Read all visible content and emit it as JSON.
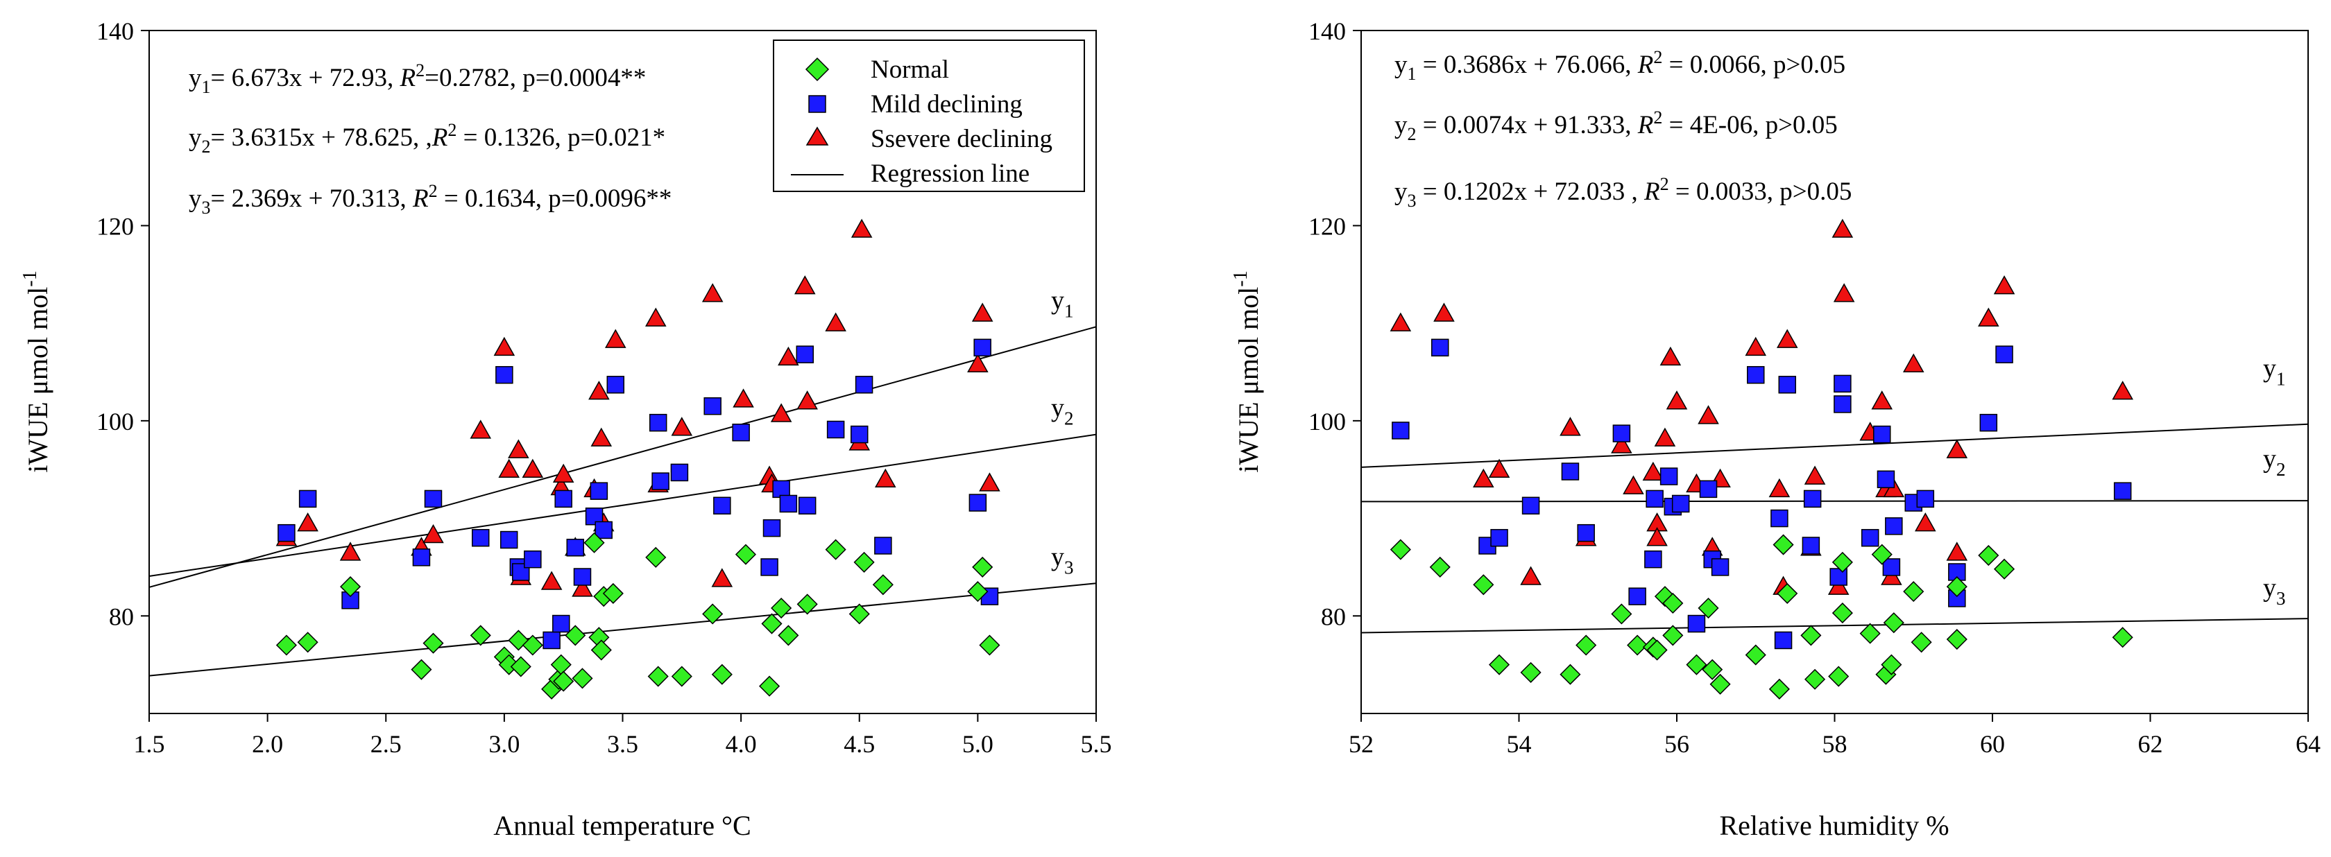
{
  "chart_data": [
    {
      "type": "scatter",
      "xlabel": "Annual temperature °C",
      "ylabel": "iWUE μmol mol",
      "ylabel_sup": "-1",
      "xlim": [
        1.5,
        5.5
      ],
      "ylim": [
        70,
        140
      ],
      "xticks": [
        "1.5",
        "2.0",
        "2.5",
        "3.0",
        "3.5",
        "4.0",
        "4.5",
        "5.0",
        "5.5"
      ],
      "yticks": [
        "80",
        "100",
        "120",
        "140"
      ],
      "legend": {
        "position": "top-right",
        "entries": [
          "Normal",
          "Mild declining",
          "Ssevere declining",
          "Regression line"
        ]
      },
      "equations": [
        "y1= 6.673x + 72.93, R2=0.2782, p=0.0004**",
        "y2= 3.6315x + 78.625, ,R2 = 0.1326, p=0.021*",
        "y3= 2.369x + 70.313, R2 = 0.1634, p=0.0096**"
      ],
      "regression": [
        {
          "name": "y",
          "sub": "1",
          "slope": 6.673,
          "intercept": 72.93
        },
        {
          "name": "y",
          "sub": "2",
          "slope": 3.6315,
          "intercept": 78.625
        },
        {
          "name": "y",
          "sub": "3",
          "slope": 2.369,
          "intercept": 70.313
        }
      ],
      "series": [
        {
          "name": "Normal",
          "marker": "diamond",
          "color": "#33ee22",
          "points": [
            [
              2.08,
              77
            ],
            [
              2.17,
              77.3
            ],
            [
              2.35,
              83
            ],
            [
              2.65,
              74.5
            ],
            [
              2.7,
              77.2
            ],
            [
              2.9,
              78
            ],
            [
              3.0,
              75.8
            ],
            [
              3.02,
              75
            ],
            [
              3.06,
              77.5
            ],
            [
              3.07,
              74.8
            ],
            [
              3.12,
              77
            ],
            [
              3.2,
              72.5
            ],
            [
              3.23,
              73.5
            ],
            [
              3.24,
              75
            ],
            [
              3.25,
              73.3
            ],
            [
              3.3,
              78
            ],
            [
              3.33,
              73.6
            ],
            [
              3.38,
              87.5
            ],
            [
              3.4,
              77.8
            ],
            [
              3.41,
              76.5
            ],
            [
              3.42,
              82
            ],
            [
              3.46,
              82.3
            ],
            [
              3.64,
              86
            ],
            [
              3.65,
              73.8
            ],
            [
              3.75,
              73.8
            ],
            [
              3.88,
              80.2
            ],
            [
              3.92,
              74
            ],
            [
              4.02,
              86.3
            ],
            [
              4.12,
              72.8
            ],
            [
              4.13,
              79.2
            ],
            [
              4.17,
              80.8
            ],
            [
              4.2,
              78
            ],
            [
              4.28,
              81.2
            ],
            [
              4.4,
              86.8
            ],
            [
              4.5,
              80.2
            ],
            [
              4.52,
              85.5
            ],
            [
              4.6,
              83.2
            ],
            [
              5.0,
              82.5
            ],
            [
              5.02,
              85
            ],
            [
              5.05,
              77
            ]
          ]
        },
        {
          "name": "Mild declining",
          "marker": "square",
          "color": "#1a1aff",
          "points": [
            [
              2.08,
              88.5
            ],
            [
              2.17,
              92
            ],
            [
              2.35,
              81.6
            ],
            [
              2.65,
              86
            ],
            [
              2.7,
              92
            ],
            [
              2.9,
              88
            ],
            [
              3.0,
              104.7
            ],
            [
              3.02,
              87.8
            ],
            [
              3.06,
              85
            ],
            [
              3.07,
              84.5
            ],
            [
              3.12,
              85.8
            ],
            [
              3.2,
              77.5
            ],
            [
              3.24,
              79.2
            ],
            [
              3.25,
              92
            ],
            [
              3.3,
              87
            ],
            [
              3.33,
              84
            ],
            [
              3.38,
              90.2
            ],
            [
              3.4,
              92.8
            ],
            [
              3.42,
              88.8
            ],
            [
              3.47,
              103.7
            ],
            [
              3.65,
              99.8
            ],
            [
              3.66,
              93.8
            ],
            [
              3.74,
              94.7
            ],
            [
              3.88,
              101.5
            ],
            [
              3.92,
              91.3
            ],
            [
              4.0,
              98.8
            ],
            [
              4.12,
              85
            ],
            [
              4.13,
              89
            ],
            [
              4.17,
              93
            ],
            [
              4.2,
              91.5
            ],
            [
              4.27,
              106.8
            ],
            [
              4.28,
              91.3
            ],
            [
              4.4,
              99.1
            ],
            [
              4.5,
              98.6
            ],
            [
              4.52,
              103.7
            ],
            [
              4.6,
              87.2
            ],
            [
              5.0,
              91.6
            ],
            [
              5.02,
              107.5
            ],
            [
              5.05,
              82
            ]
          ]
        },
        {
          "name": "Ssevere declining",
          "marker": "triangle",
          "color": "#ee1111",
          "points": [
            [
              2.08,
              88
            ],
            [
              2.17,
              89.5
            ],
            [
              2.35,
              86.5
            ],
            [
              2.65,
              87
            ],
            [
              2.7,
              88.3
            ],
            [
              2.9,
              99
            ],
            [
              3.0,
              107.5
            ],
            [
              3.02,
              95
            ],
            [
              3.06,
              97
            ],
            [
              3.07,
              84
            ],
            [
              3.12,
              95
            ],
            [
              3.2,
              83.5
            ],
            [
              3.24,
              93.2
            ],
            [
              3.25,
              94.5
            ],
            [
              3.3,
              87
            ],
            [
              3.33,
              82.8
            ],
            [
              3.38,
              93
            ],
            [
              3.4,
              103
            ],
            [
              3.41,
              98.2
            ],
            [
              3.42,
              89.5
            ],
            [
              3.47,
              108.3
            ],
            [
              3.64,
              110.5
            ],
            [
              3.65,
              93.5
            ],
            [
              3.75,
              99.3
            ],
            [
              3.88,
              113
            ],
            [
              3.92,
              83.8
            ],
            [
              4.01,
              102.2
            ],
            [
              4.12,
              94.3
            ],
            [
              4.13,
              93.5
            ],
            [
              4.17,
              100.7
            ],
            [
              4.2,
              106.5
            ],
            [
              4.27,
              113.8
            ],
            [
              4.28,
              102
            ],
            [
              4.4,
              110
            ],
            [
              4.5,
              97.8
            ],
            [
              4.51,
              119.6
            ],
            [
              4.61,
              94
            ],
            [
              5.0,
              105.8
            ],
            [
              5.02,
              111
            ],
            [
              5.05,
              93.6
            ]
          ]
        }
      ]
    },
    {
      "type": "scatter",
      "xlabel": "Relative humidity %",
      "ylabel": "iWUE μmol mol",
      "ylabel_sup": "-1",
      "xlim": [
        52,
        64
      ],
      "ylim": [
        70,
        140
      ],
      "xticks": [
        "52",
        "54",
        "56",
        "58",
        "60",
        "62",
        "64"
      ],
      "yticks": [
        "80",
        "100",
        "120",
        "140"
      ],
      "equations": [
        "y1 = 0.3686x + 76.066, R2 = 0.0066, p>0.05",
        "y2 = 0.0074x + 91.333, R2 = 4E-06, p>0.05",
        "y3 = 0.1202x + 72.033 , R2 = 0.0033, p>0.05"
      ],
      "regression": [
        {
          "name": "y",
          "sub": "1",
          "slope": 0.3686,
          "intercept": 76.066
        },
        {
          "name": "y",
          "sub": "2",
          "slope": 0.0074,
          "intercept": 91.333
        },
        {
          "name": "y",
          "sub": "3",
          "slope": 0.1202,
          "intercept": 72.033
        }
      ],
      "series": [
        {
          "name": "Normal",
          "marker": "diamond",
          "color": "#33ee22",
          "points": [
            [
              52.5,
              86.8
            ],
            [
              53.0,
              85
            ],
            [
              53.55,
              83.2
            ],
            [
              53.75,
              75
            ],
            [
              54.15,
              74.2
            ],
            [
              54.65,
              74
            ],
            [
              54.85,
              77
            ],
            [
              55.3,
              80.2
            ],
            [
              55.5,
              77
            ],
            [
              55.7,
              76.8
            ],
            [
              55.75,
              76.5
            ],
            [
              55.85,
              82
            ],
            [
              55.95,
              81.3
            ],
            [
              55.95,
              78
            ],
            [
              56.25,
              75
            ],
            [
              56.4,
              80.8
            ],
            [
              56.45,
              74.5
            ],
            [
              56.55,
              73
            ],
            [
              57.0,
              76
            ],
            [
              57.3,
              72.5
            ],
            [
              57.35,
              87.3
            ],
            [
              57.4,
              82.3
            ],
            [
              57.7,
              78
            ],
            [
              57.75,
              73.5
            ],
            [
              58.05,
              73.8
            ],
            [
              58.1,
              85.5
            ],
            [
              58.1,
              80.3
            ],
            [
              58.45,
              78.2
            ],
            [
              58.6,
              86.3
            ],
            [
              58.65,
              74
            ],
            [
              58.72,
              75
            ],
            [
              58.75,
              79.3
            ],
            [
              59.0,
              82.5
            ],
            [
              59.1,
              77.3
            ],
            [
              59.55,
              77.6
            ],
            [
              59.55,
              83
            ],
            [
              59.95,
              86.2
            ],
            [
              60.15,
              84.8
            ],
            [
              61.65,
              77.8
            ]
          ]
        },
        {
          "name": "Mild declining",
          "marker": "square",
          "color": "#1a1aff",
          "points": [
            [
              52.5,
              99
            ],
            [
              53.0,
              107.5
            ],
            [
              53.6,
              87.2
            ],
            [
              53.75,
              88
            ],
            [
              54.15,
              91.3
            ],
            [
              54.65,
              94.8
            ],
            [
              54.85,
              88.5
            ],
            [
              55.3,
              98.7
            ],
            [
              55.5,
              82
            ],
            [
              55.7,
              85.8
            ],
            [
              55.72,
              92
            ],
            [
              55.9,
              94.3
            ],
            [
              55.95,
              91.2
            ],
            [
              56.05,
              91.5
            ],
            [
              56.25,
              79.2
            ],
            [
              56.4,
              93
            ],
            [
              56.45,
              85.8
            ],
            [
              56.55,
              85
            ],
            [
              57.0,
              104.7
            ],
            [
              57.3,
              90
            ],
            [
              57.35,
              77.5
            ],
            [
              57.4,
              103.7
            ],
            [
              57.7,
              87.2
            ],
            [
              57.72,
              92
            ],
            [
              58.05,
              84
            ],
            [
              58.1,
              101.7
            ],
            [
              58.1,
              103.8
            ],
            [
              58.45,
              88
            ],
            [
              58.6,
              98.6
            ],
            [
              58.65,
              94
            ],
            [
              58.72,
              85
            ],
            [
              58.75,
              89.2
            ],
            [
              59.0,
              91.6
            ],
            [
              59.15,
              92
            ],
            [
              59.55,
              84.5
            ],
            [
              59.55,
              81.8
            ],
            [
              59.95,
              99.8
            ],
            [
              60.15,
              106.8
            ],
            [
              61.65,
              92.8
            ]
          ]
        },
        {
          "name": "Ssevere declining",
          "marker": "triangle",
          "color": "#ee1111",
          "points": [
            [
              52.5,
              110
            ],
            [
              53.05,
              111
            ],
            [
              53.55,
              94
            ],
            [
              53.75,
              95
            ],
            [
              54.15,
              84
            ],
            [
              54.65,
              99.3
            ],
            [
              54.85,
              88
            ],
            [
              55.3,
              97.5
            ],
            [
              55.45,
              93.3
            ],
            [
              55.7,
              94.7
            ],
            [
              55.75,
              89.5
            ],
            [
              55.75,
              88
            ],
            [
              55.85,
              98.2
            ],
            [
              55.92,
              106.5
            ],
            [
              56.0,
              102
            ],
            [
              56.25,
              93.5
            ],
            [
              56.4,
              100.5
            ],
            [
              56.45,
              87
            ],
            [
              56.55,
              94
            ],
            [
              57.0,
              107.5
            ],
            [
              57.3,
              93
            ],
            [
              57.35,
              83
            ],
            [
              57.4,
              108.3
            ],
            [
              57.7,
              87
            ],
            [
              57.75,
              94.3
            ],
            [
              58.05,
              83
            ],
            [
              58.1,
              119.6
            ],
            [
              58.12,
              113
            ],
            [
              58.45,
              98.8
            ],
            [
              58.6,
              102
            ],
            [
              58.65,
              93
            ],
            [
              58.72,
              84
            ],
            [
              58.75,
              93
            ],
            [
              59.0,
              105.8
            ],
            [
              59.15,
              89.5
            ],
            [
              59.55,
              97
            ],
            [
              59.55,
              86.5
            ],
            [
              59.95,
              110.5
            ],
            [
              60.15,
              113.8
            ],
            [
              61.65,
              103
            ]
          ]
        }
      ]
    }
  ]
}
